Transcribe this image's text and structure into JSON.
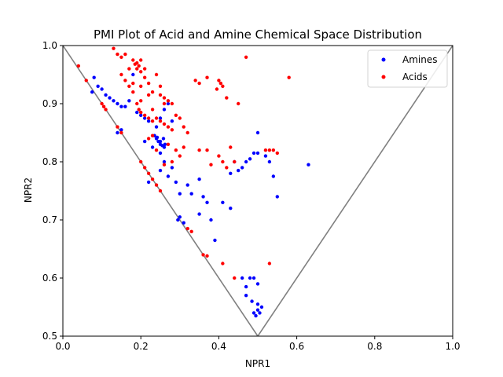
{
  "chart_data": {
    "type": "scatter",
    "title": "PMI Plot of Acid and Amine Chemical Space Distribution",
    "xlabel": "NPR1",
    "ylabel": "NPR2",
    "xlim": [
      0,
      1
    ],
    "ylim": [
      0.5,
      1
    ],
    "xticks": [
      "0.0",
      "0.2",
      "0.4",
      "0.6",
      "0.8",
      "1.0"
    ],
    "yticks": [
      "0.5",
      "0.6",
      "0.7",
      "0.8",
      "0.9",
      "1.0"
    ],
    "grid": false,
    "legend_position": "top-right",
    "boundary_triangle": [
      [
        0,
        1
      ],
      [
        0.5,
        0.5
      ],
      [
        1,
        1
      ]
    ],
    "boundary_color": "#808080",
    "series": [
      {
        "name": "Amines",
        "color": "#0000ff",
        "points": [
          [
            0.08,
            0.945
          ],
          [
            0.09,
            0.93
          ],
          [
            0.1,
            0.925
          ],
          [
            0.11,
            0.915
          ],
          [
            0.12,
            0.91
          ],
          [
            0.13,
            0.905
          ],
          [
            0.14,
            0.9
          ],
          [
            0.15,
            0.895
          ],
          [
            0.16,
            0.895
          ],
          [
            0.17,
            0.905
          ],
          [
            0.18,
            0.95
          ],
          [
            0.19,
            0.885
          ],
          [
            0.2,
            0.88
          ],
          [
            0.21,
            0.875
          ],
          [
            0.22,
            0.87
          ],
          [
            0.24,
            0.86
          ],
          [
            0.25,
            0.875
          ],
          [
            0.26,
            0.89
          ],
          [
            0.27,
            0.9
          ],
          [
            0.28,
            0.87
          ],
          [
            0.235,
            0.845
          ],
          [
            0.24,
            0.84
          ],
          [
            0.245,
            0.835
          ],
          [
            0.25,
            0.83
          ],
          [
            0.255,
            0.828
          ],
          [
            0.26,
            0.825
          ],
          [
            0.262,
            0.83
          ],
          [
            0.258,
            0.84
          ],
          [
            0.25,
            0.835
          ],
          [
            0.242,
            0.842
          ],
          [
            0.21,
            0.835
          ],
          [
            0.23,
            0.825
          ],
          [
            0.25,
            0.815
          ],
          [
            0.26,
            0.8
          ],
          [
            0.28,
            0.79
          ],
          [
            0.25,
            0.785
          ],
          [
            0.27,
            0.775
          ],
          [
            0.29,
            0.765
          ],
          [
            0.3,
            0.745
          ],
          [
            0.32,
            0.76
          ],
          [
            0.33,
            0.745
          ],
          [
            0.35,
            0.77
          ],
          [
            0.36,
            0.74
          ],
          [
            0.37,
            0.73
          ],
          [
            0.41,
            0.73
          ],
          [
            0.43,
            0.72
          ],
          [
            0.35,
            0.71
          ],
          [
            0.38,
            0.7
          ],
          [
            0.39,
            0.665
          ],
          [
            0.43,
            0.78
          ],
          [
            0.44,
            0.8
          ],
          [
            0.45,
            0.785
          ],
          [
            0.46,
            0.79
          ],
          [
            0.47,
            0.8
          ],
          [
            0.48,
            0.805
          ],
          [
            0.49,
            0.815
          ],
          [
            0.5,
            0.815
          ],
          [
            0.5,
            0.85
          ],
          [
            0.52,
            0.81
          ],
          [
            0.53,
            0.8
          ],
          [
            0.54,
            0.775
          ],
          [
            0.55,
            0.74
          ],
          [
            0.63,
            0.795
          ],
          [
            0.46,
            0.6
          ],
          [
            0.47,
            0.585
          ],
          [
            0.48,
            0.6
          ],
          [
            0.49,
            0.6
          ],
          [
            0.5,
            0.59
          ],
          [
            0.47,
            0.57
          ],
          [
            0.485,
            0.56
          ],
          [
            0.49,
            0.54
          ],
          [
            0.495,
            0.535
          ],
          [
            0.5,
            0.545
          ],
          [
            0.505,
            0.54
          ],
          [
            0.51,
            0.55
          ],
          [
            0.5,
            0.555
          ],
          [
            0.075,
            0.92
          ],
          [
            0.14,
            0.85
          ],
          [
            0.15,
            0.855
          ],
          [
            0.22,
            0.765
          ],
          [
            0.3,
            0.705
          ],
          [
            0.295,
            0.7
          ],
          [
            0.31,
            0.695
          ]
        ]
      },
      {
        "name": "Acids",
        "color": "#ff0000",
        "points": [
          [
            0.04,
            0.965
          ],
          [
            0.06,
            0.94
          ],
          [
            0.1,
            0.9
          ],
          [
            0.105,
            0.895
          ],
          [
            0.11,
            0.89
          ],
          [
            0.14,
            0.86
          ],
          [
            0.15,
            0.85
          ],
          [
            0.2,
            0.8
          ],
          [
            0.21,
            0.79
          ],
          [
            0.22,
            0.78
          ],
          [
            0.23,
            0.77
          ],
          [
            0.24,
            0.76
          ],
          [
            0.25,
            0.75
          ],
          [
            0.32,
            0.685
          ],
          [
            0.33,
            0.68
          ],
          [
            0.36,
            0.64
          ],
          [
            0.37,
            0.638
          ],
          [
            0.13,
            0.995
          ],
          [
            0.14,
            0.985
          ],
          [
            0.15,
            0.98
          ],
          [
            0.16,
            0.985
          ],
          [
            0.18,
            0.975
          ],
          [
            0.19,
            0.97
          ],
          [
            0.195,
            0.965
          ],
          [
            0.2,
            0.975
          ],
          [
            0.19,
            0.96
          ],
          [
            0.2,
            0.955
          ],
          [
            0.185,
            0.968
          ],
          [
            0.17,
            0.96
          ],
          [
            0.15,
            0.95
          ],
          [
            0.16,
            0.94
          ],
          [
            0.17,
            0.93
          ],
          [
            0.18,
            0.935
          ],
          [
            0.2,
            0.93
          ],
          [
            0.21,
            0.945
          ],
          [
            0.22,
            0.935
          ],
          [
            0.23,
            0.92
          ],
          [
            0.25,
            0.915
          ],
          [
            0.26,
            0.91
          ],
          [
            0.27,
            0.905
          ],
          [
            0.28,
            0.9
          ],
          [
            0.2,
            0.905
          ],
          [
            0.19,
            0.9
          ],
          [
            0.195,
            0.89
          ],
          [
            0.2,
            0.885
          ],
          [
            0.21,
            0.88
          ],
          [
            0.22,
            0.875
          ],
          [
            0.23,
            0.87
          ],
          [
            0.24,
            0.875
          ],
          [
            0.25,
            0.87
          ],
          [
            0.26,
            0.865
          ],
          [
            0.27,
            0.86
          ],
          [
            0.28,
            0.855
          ],
          [
            0.29,
            0.88
          ],
          [
            0.3,
            0.875
          ],
          [
            0.31,
            0.86
          ],
          [
            0.32,
            0.85
          ],
          [
            0.22,
            0.84
          ],
          [
            0.23,
            0.845
          ],
          [
            0.24,
            0.82
          ],
          [
            0.27,
            0.83
          ],
          [
            0.29,
            0.82
          ],
          [
            0.31,
            0.825
          ],
          [
            0.3,
            0.81
          ],
          [
            0.28,
            0.8
          ],
          [
            0.26,
            0.795
          ],
          [
            0.35,
            0.82
          ],
          [
            0.37,
            0.82
          ],
          [
            0.4,
            0.81
          ],
          [
            0.41,
            0.8
          ],
          [
            0.42,
            0.79
          ],
          [
            0.44,
            0.8
          ],
          [
            0.43,
            0.825
          ],
          [
            0.38,
            0.795
          ],
          [
            0.37,
            0.945
          ],
          [
            0.34,
            0.94
          ],
          [
            0.35,
            0.935
          ],
          [
            0.4,
            0.94
          ],
          [
            0.405,
            0.935
          ],
          [
            0.41,
            0.93
          ],
          [
            0.395,
            0.925
          ],
          [
            0.42,
            0.91
          ],
          [
            0.45,
            0.9
          ],
          [
            0.47,
            0.98
          ],
          [
            0.58,
            0.945
          ],
          [
            0.54,
            0.82
          ],
          [
            0.55,
            0.815
          ],
          [
            0.53,
            0.82
          ],
          [
            0.52,
            0.82
          ],
          [
            0.53,
            0.625
          ],
          [
            0.41,
            0.625
          ],
          [
            0.44,
            0.6
          ],
          [
            0.25,
            0.93
          ],
          [
            0.22,
            0.915
          ],
          [
            0.24,
            0.95
          ],
          [
            0.23,
            0.89
          ],
          [
            0.26,
            0.9
          ],
          [
            0.18,
            0.92
          ],
          [
            0.21,
            0.96
          ]
        ]
      }
    ]
  }
}
